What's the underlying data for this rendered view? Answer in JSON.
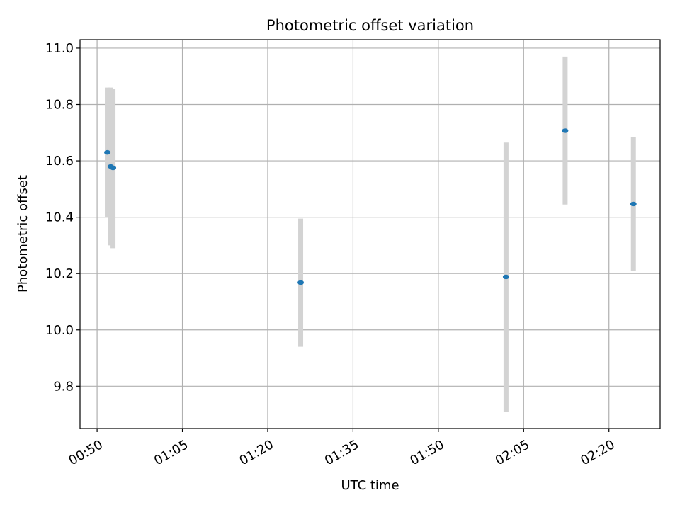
{
  "chart_data": {
    "type": "scatter",
    "title": "Photometric offset variation",
    "xlabel": "UTC time",
    "ylabel": "Photometric offset",
    "x_ticks": [
      "00:50",
      "01:05",
      "01:20",
      "01:35",
      "01:50",
      "02:05",
      "02:20"
    ],
    "y_ticks": [
      "9.8",
      "10.0",
      "10.2",
      "10.4",
      "10.6",
      "10.8",
      "11.0"
    ],
    "xlim": [
      "00:47",
      "02:29"
    ],
    "ylim": [
      9.65,
      11.03
    ],
    "grid": true,
    "colors": {
      "points": "#1f77b4",
      "errorbars": "#d3d3d3",
      "grid": "#b0b0b0"
    },
    "points": [
      {
        "x": "00:51:48",
        "y": 10.63,
        "err_low": 10.4,
        "err_high": 10.86
      },
      {
        "x": "00:52:24",
        "y": 10.58,
        "err_low": 10.3,
        "err_high": 10.86
      },
      {
        "x": "00:52:48",
        "y": 10.575,
        "err_low": 10.29,
        "err_high": 10.855
      },
      {
        "x": "01:25:48",
        "y": 10.168,
        "err_low": 9.94,
        "err_high": 10.395
      },
      {
        "x": "02:01:54",
        "y": 10.188,
        "err_low": 9.71,
        "err_high": 10.665
      },
      {
        "x": "02:12:18",
        "y": 10.707,
        "err_low": 10.445,
        "err_high": 10.97
      },
      {
        "x": "02:24:18",
        "y": 10.447,
        "err_low": 10.21,
        "err_high": 10.685
      }
    ]
  }
}
